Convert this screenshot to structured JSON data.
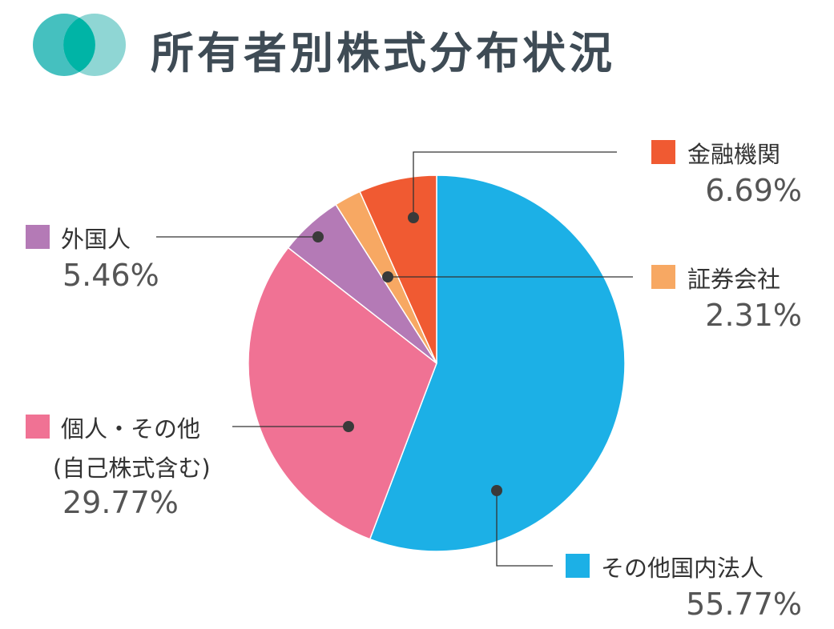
{
  "header": {
    "title": "所有者別株式分布状況"
  },
  "colors": {
    "logo_left": "#45c0bf",
    "logo_right": "#8fd6d4",
    "logo_overlap": "#00b4a6"
  },
  "chart_data": {
    "type": "pie",
    "title": "所有者別株式分布状況",
    "start": "top",
    "direction": "clockwise",
    "slices": [
      {
        "name": "その他国内法人",
        "value": 55.77,
        "label": "55.77%",
        "color": "#1cb0e6"
      },
      {
        "name": "個人・その他",
        "name2": "(自己株式含む)",
        "value": 29.77,
        "label": "29.77%",
        "color": "#f07294"
      },
      {
        "name": "外国人",
        "value": 5.46,
        "label": "5.46%",
        "color": "#b47ab6"
      },
      {
        "name": "証券会社",
        "value": 2.31,
        "label": "2.31%",
        "color": "#f7a863"
      },
      {
        "name": "金融機関",
        "value": 6.69,
        "label": "6.69%",
        "color": "#f05a32"
      }
    ]
  }
}
